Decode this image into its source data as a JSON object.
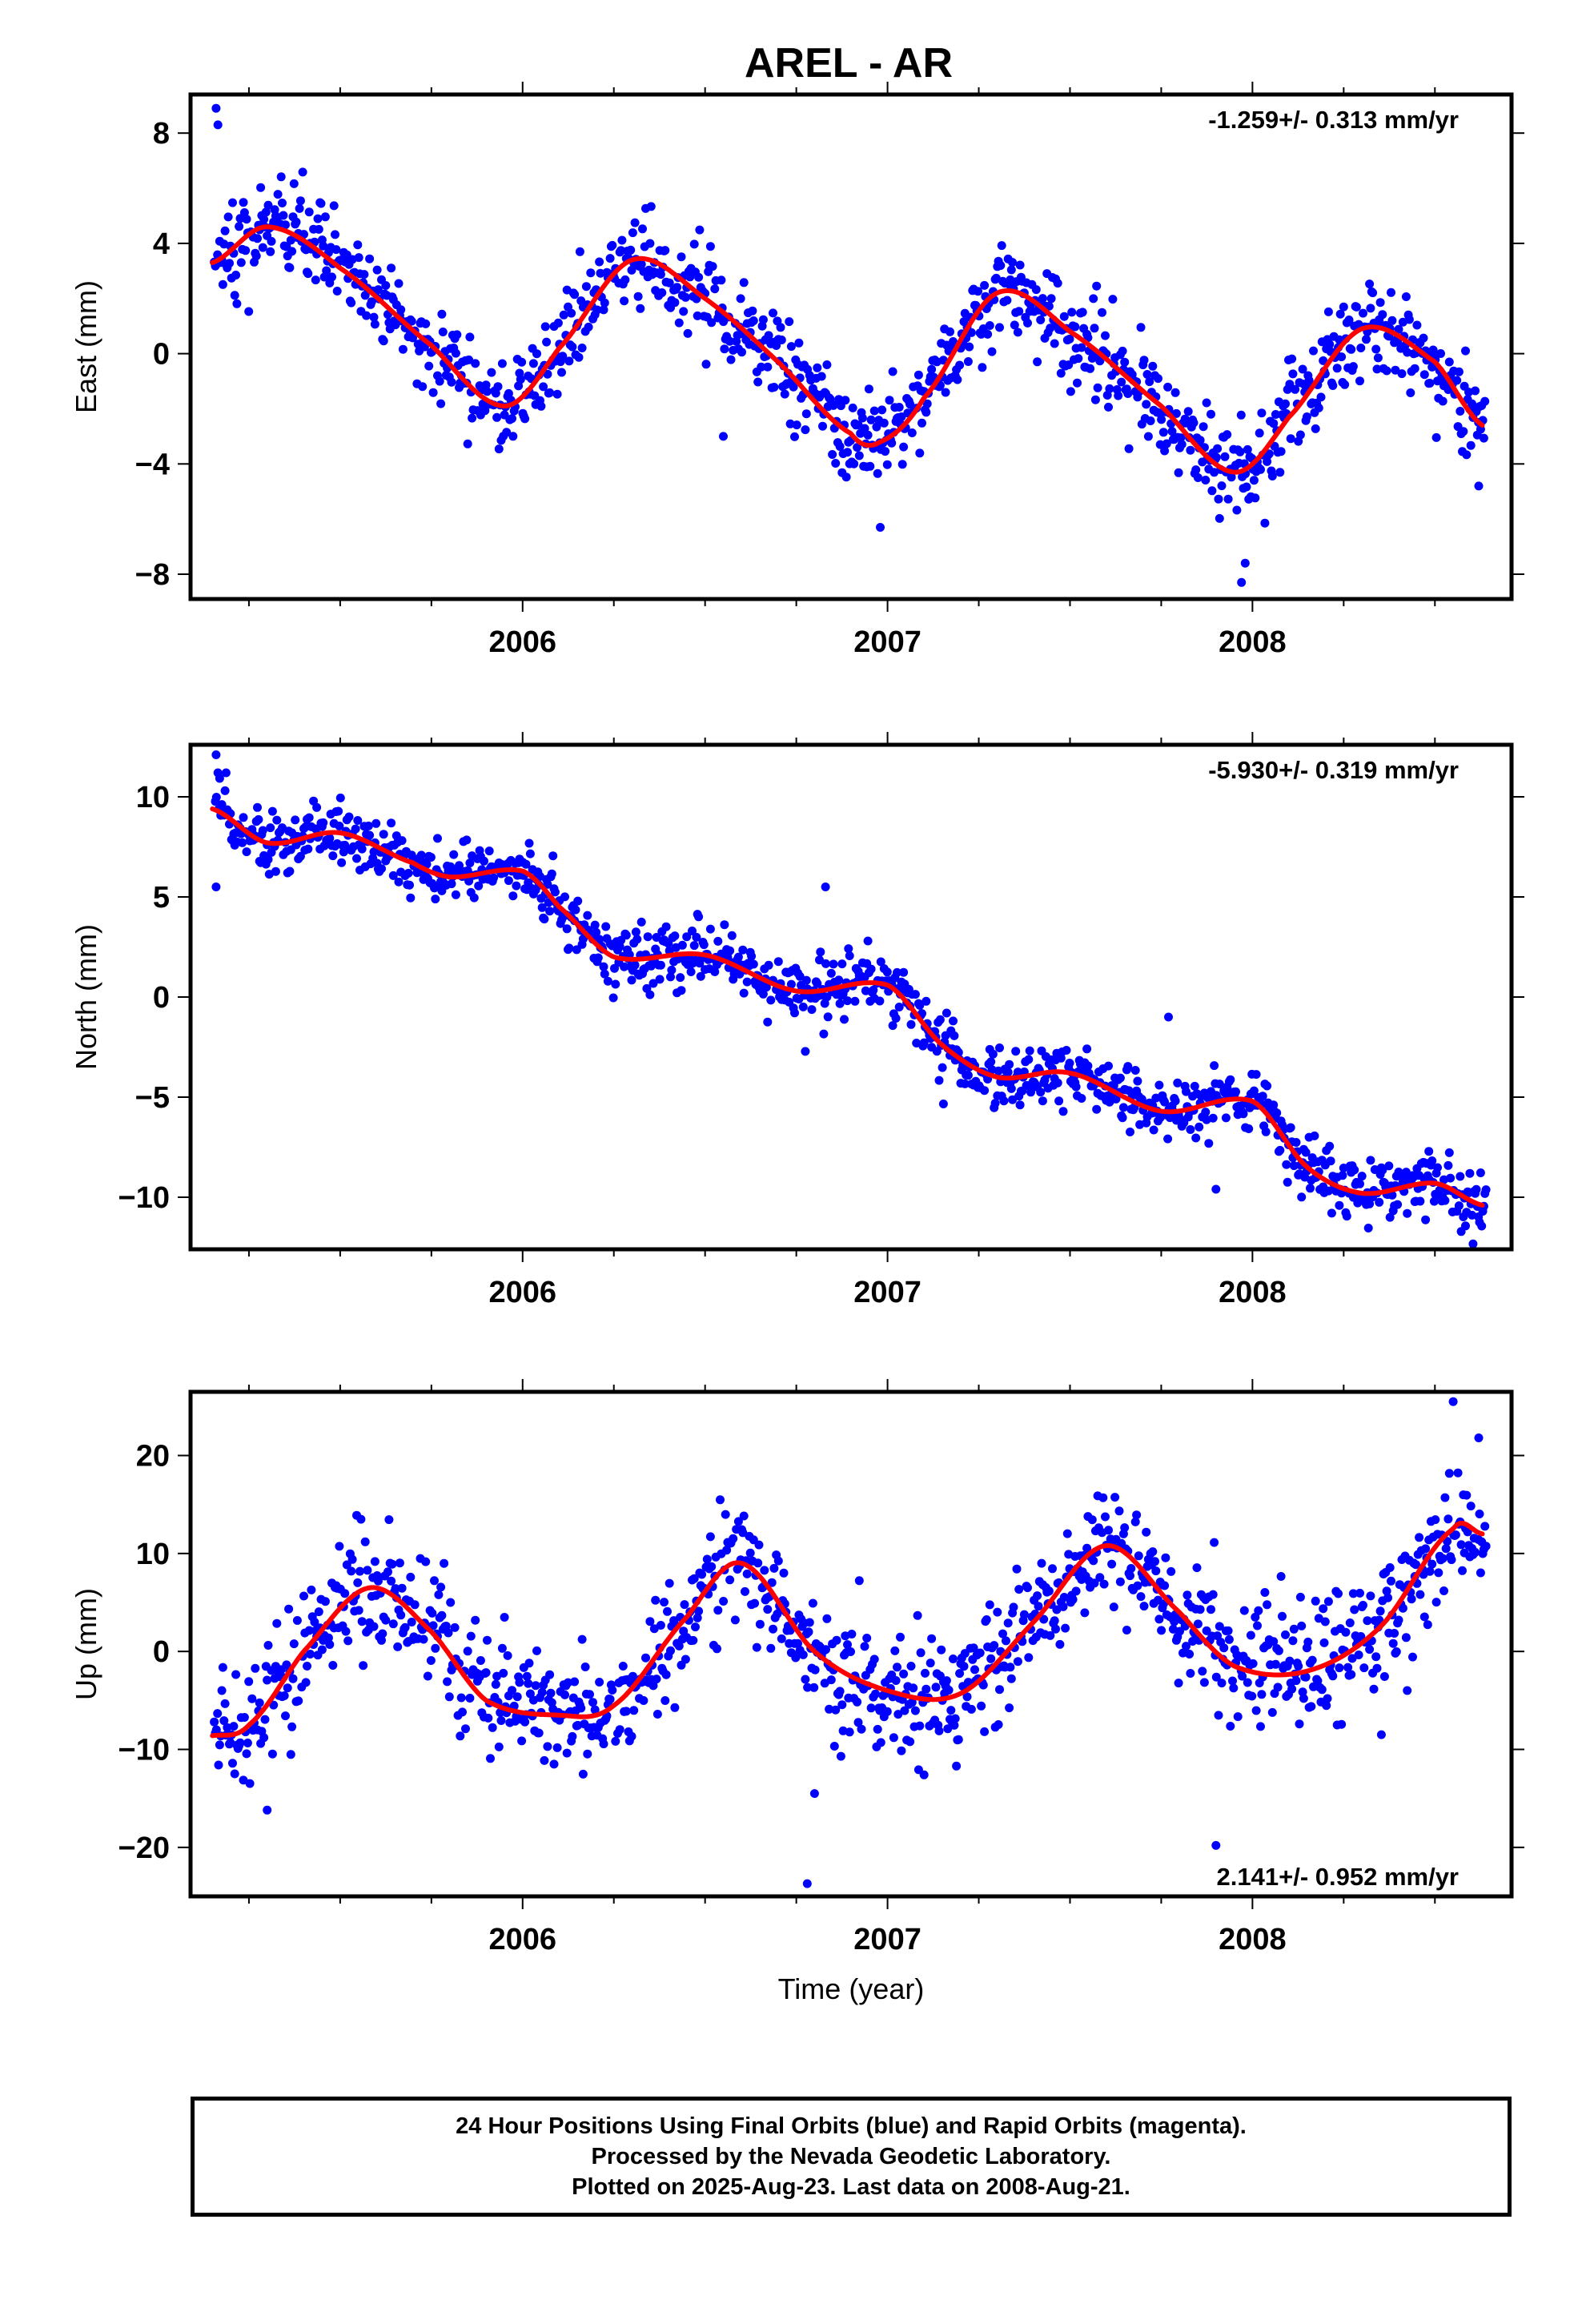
{
  "title": "AREL - AR",
  "colors": {
    "points": "#0000ff",
    "fit": "#ff0000",
    "axis": "#000000"
  },
  "chart_data": [
    {
      "type": "scatter",
      "name": "east",
      "ylabel": "East (mm)",
      "xlabel": "",
      "rate_label": "-1.259+/- 0.313 mm/yr",
      "rate_position": "top-right",
      "xlim": [
        2005.09,
        2008.71
      ],
      "ylim": [
        -8.9,
        9.4
      ],
      "yticks": [
        -8,
        -4,
        0,
        4,
        8
      ],
      "ytick_labels": [
        "−8",
        "−4",
        "0",
        "4",
        "8"
      ],
      "xticks": [
        2006,
        2007,
        2008
      ],
      "xtick_labels": [
        "2006",
        "2007",
        "2008"
      ],
      "trend": -1.259,
      "seasonal": {
        "a1": 2.6,
        "phase1": 0.05,
        "a2": 0.3,
        "phase2": 0.1
      },
      "fit": {
        "x": [
          2005.15,
          2005.3,
          2005.5,
          2005.75,
          2005.95,
          2006.1,
          2006.3,
          2006.5,
          2006.7,
          2006.9,
          2006.98,
          2007.1,
          2007.3,
          2007.5,
          2007.75,
          2007.95,
          2008.1,
          2008.3,
          2008.5,
          2008.63
        ],
        "y": [
          3.3,
          4.6,
          3.1,
          0.3,
          -1.9,
          0.2,
          3.4,
          2.0,
          -0.3,
          -2.9,
          -3.2,
          -1.6,
          2.2,
          0.8,
          -1.9,
          -4.3,
          -2.3,
          0.9,
          -0.3,
          -2.6
        ]
      },
      "noise": 0.85,
      "outliers": [
        [
          2005.16,
          8.9
        ],
        [
          2005.165,
          8.3
        ],
        [
          2006.55,
          -3.0
        ],
        [
          2006.98,
          -6.3
        ],
        [
          2007.97,
          -8.3
        ],
        [
          2007.98,
          -7.6
        ],
        [
          2008.62,
          -4.8
        ]
      ]
    },
    {
      "type": "scatter",
      "name": "north",
      "ylabel": "North (mm)",
      "xlabel": "",
      "rate_label": "-5.930+/- 0.319 mm/yr",
      "rate_position": "top-right",
      "xlim": [
        2005.09,
        2008.71
      ],
      "ylim": [
        -12.6,
        12.6
      ],
      "yticks": [
        -10,
        -5,
        0,
        5,
        10
      ],
      "ytick_labels": [
        "−10",
        "−5",
        "0",
        "5",
        "10"
      ],
      "xticks": [
        2006,
        2007,
        2008
      ],
      "xtick_labels": [
        "2006",
        "2007",
        "2008"
      ],
      "trend": -5.93,
      "fit": {
        "x": [
          2005.15,
          2005.3,
          2005.5,
          2005.7,
          2005.8,
          2006.0,
          2006.1,
          2006.25,
          2006.5,
          2006.75,
          2007.0,
          2007.15,
          2007.3,
          2007.5,
          2007.75,
          2008.0,
          2008.15,
          2008.3,
          2008.5,
          2008.63
        ],
        "y": [
          9.4,
          7.7,
          8.2,
          6.7,
          6.0,
          6.3,
          4.5,
          2.0,
          2.1,
          0.3,
          0.6,
          -2.4,
          -4.0,
          -3.8,
          -5.7,
          -5.2,
          -8.5,
          -9.8,
          -9.3,
          -10.4
        ]
      },
      "noise": 0.75,
      "outliers": [
        [
          2005.16,
          12.1
        ],
        [
          2005.165,
          11.2
        ],
        [
          2005.16,
          5.5
        ],
        [
          2006.83,
          5.5
        ],
        [
          2007.77,
          -1.0
        ],
        [
          2007.9,
          -9.6
        ]
      ]
    },
    {
      "type": "scatter",
      "name": "up",
      "ylabel": "Up (mm)",
      "xlabel": "Time (year)",
      "rate_label": "2.141+/- 0.952 mm/yr",
      "rate_position": "bottom-right",
      "xlim": [
        2005.09,
        2008.71
      ],
      "ylim": [
        -25,
        26.5
      ],
      "yticks": [
        -20,
        -10,
        0,
        10,
        20
      ],
      "ytick_labels": [
        "−20",
        "−10",
        "0",
        "10",
        "20"
      ],
      "xticks": [
        2006,
        2007,
        2008
      ],
      "xtick_labels": [
        "2006",
        "2007",
        "2008"
      ],
      "trend": 2.141,
      "fit": {
        "x": [
          2005.15,
          2005.25,
          2005.4,
          2005.58,
          2005.75,
          2005.9,
          2006.1,
          2006.25,
          2006.45,
          2006.6,
          2006.8,
          2007.0,
          2007.2,
          2007.4,
          2007.6,
          2007.8,
          2007.95,
          2008.15,
          2008.35,
          2008.55,
          2008.63
        ],
        "y": [
          -8.6,
          -7.5,
          0.0,
          6.5,
          2.0,
          -5.0,
          -6.5,
          -5.5,
          3.5,
          9.0,
          0.0,
          -4.0,
          -4.3,
          3.0,
          10.8,
          4.0,
          -1.5,
          -2.0,
          2.5,
          12.5,
          12.0
        ]
      },
      "noise": 3.2,
      "outliers": [
        [
          2008.55,
          25.5
        ],
        [
          2008.62,
          21.8
        ],
        [
          2007.9,
          -19.8
        ],
        [
          2006.78,
          -23.7
        ],
        [
          2006.8,
          -14.5
        ],
        [
          2005.3,
          -16.2
        ]
      ]
    }
  ],
  "footer": {
    "line1": "24 Hour Positions Using Final Orbits (blue) and Rapid Orbits (magenta).",
    "line2": "Processed by the Nevada Geodetic Laboratory.",
    "line3": "Plotted on 2025-Aug-23. Last data on 2008-Aug-21."
  }
}
